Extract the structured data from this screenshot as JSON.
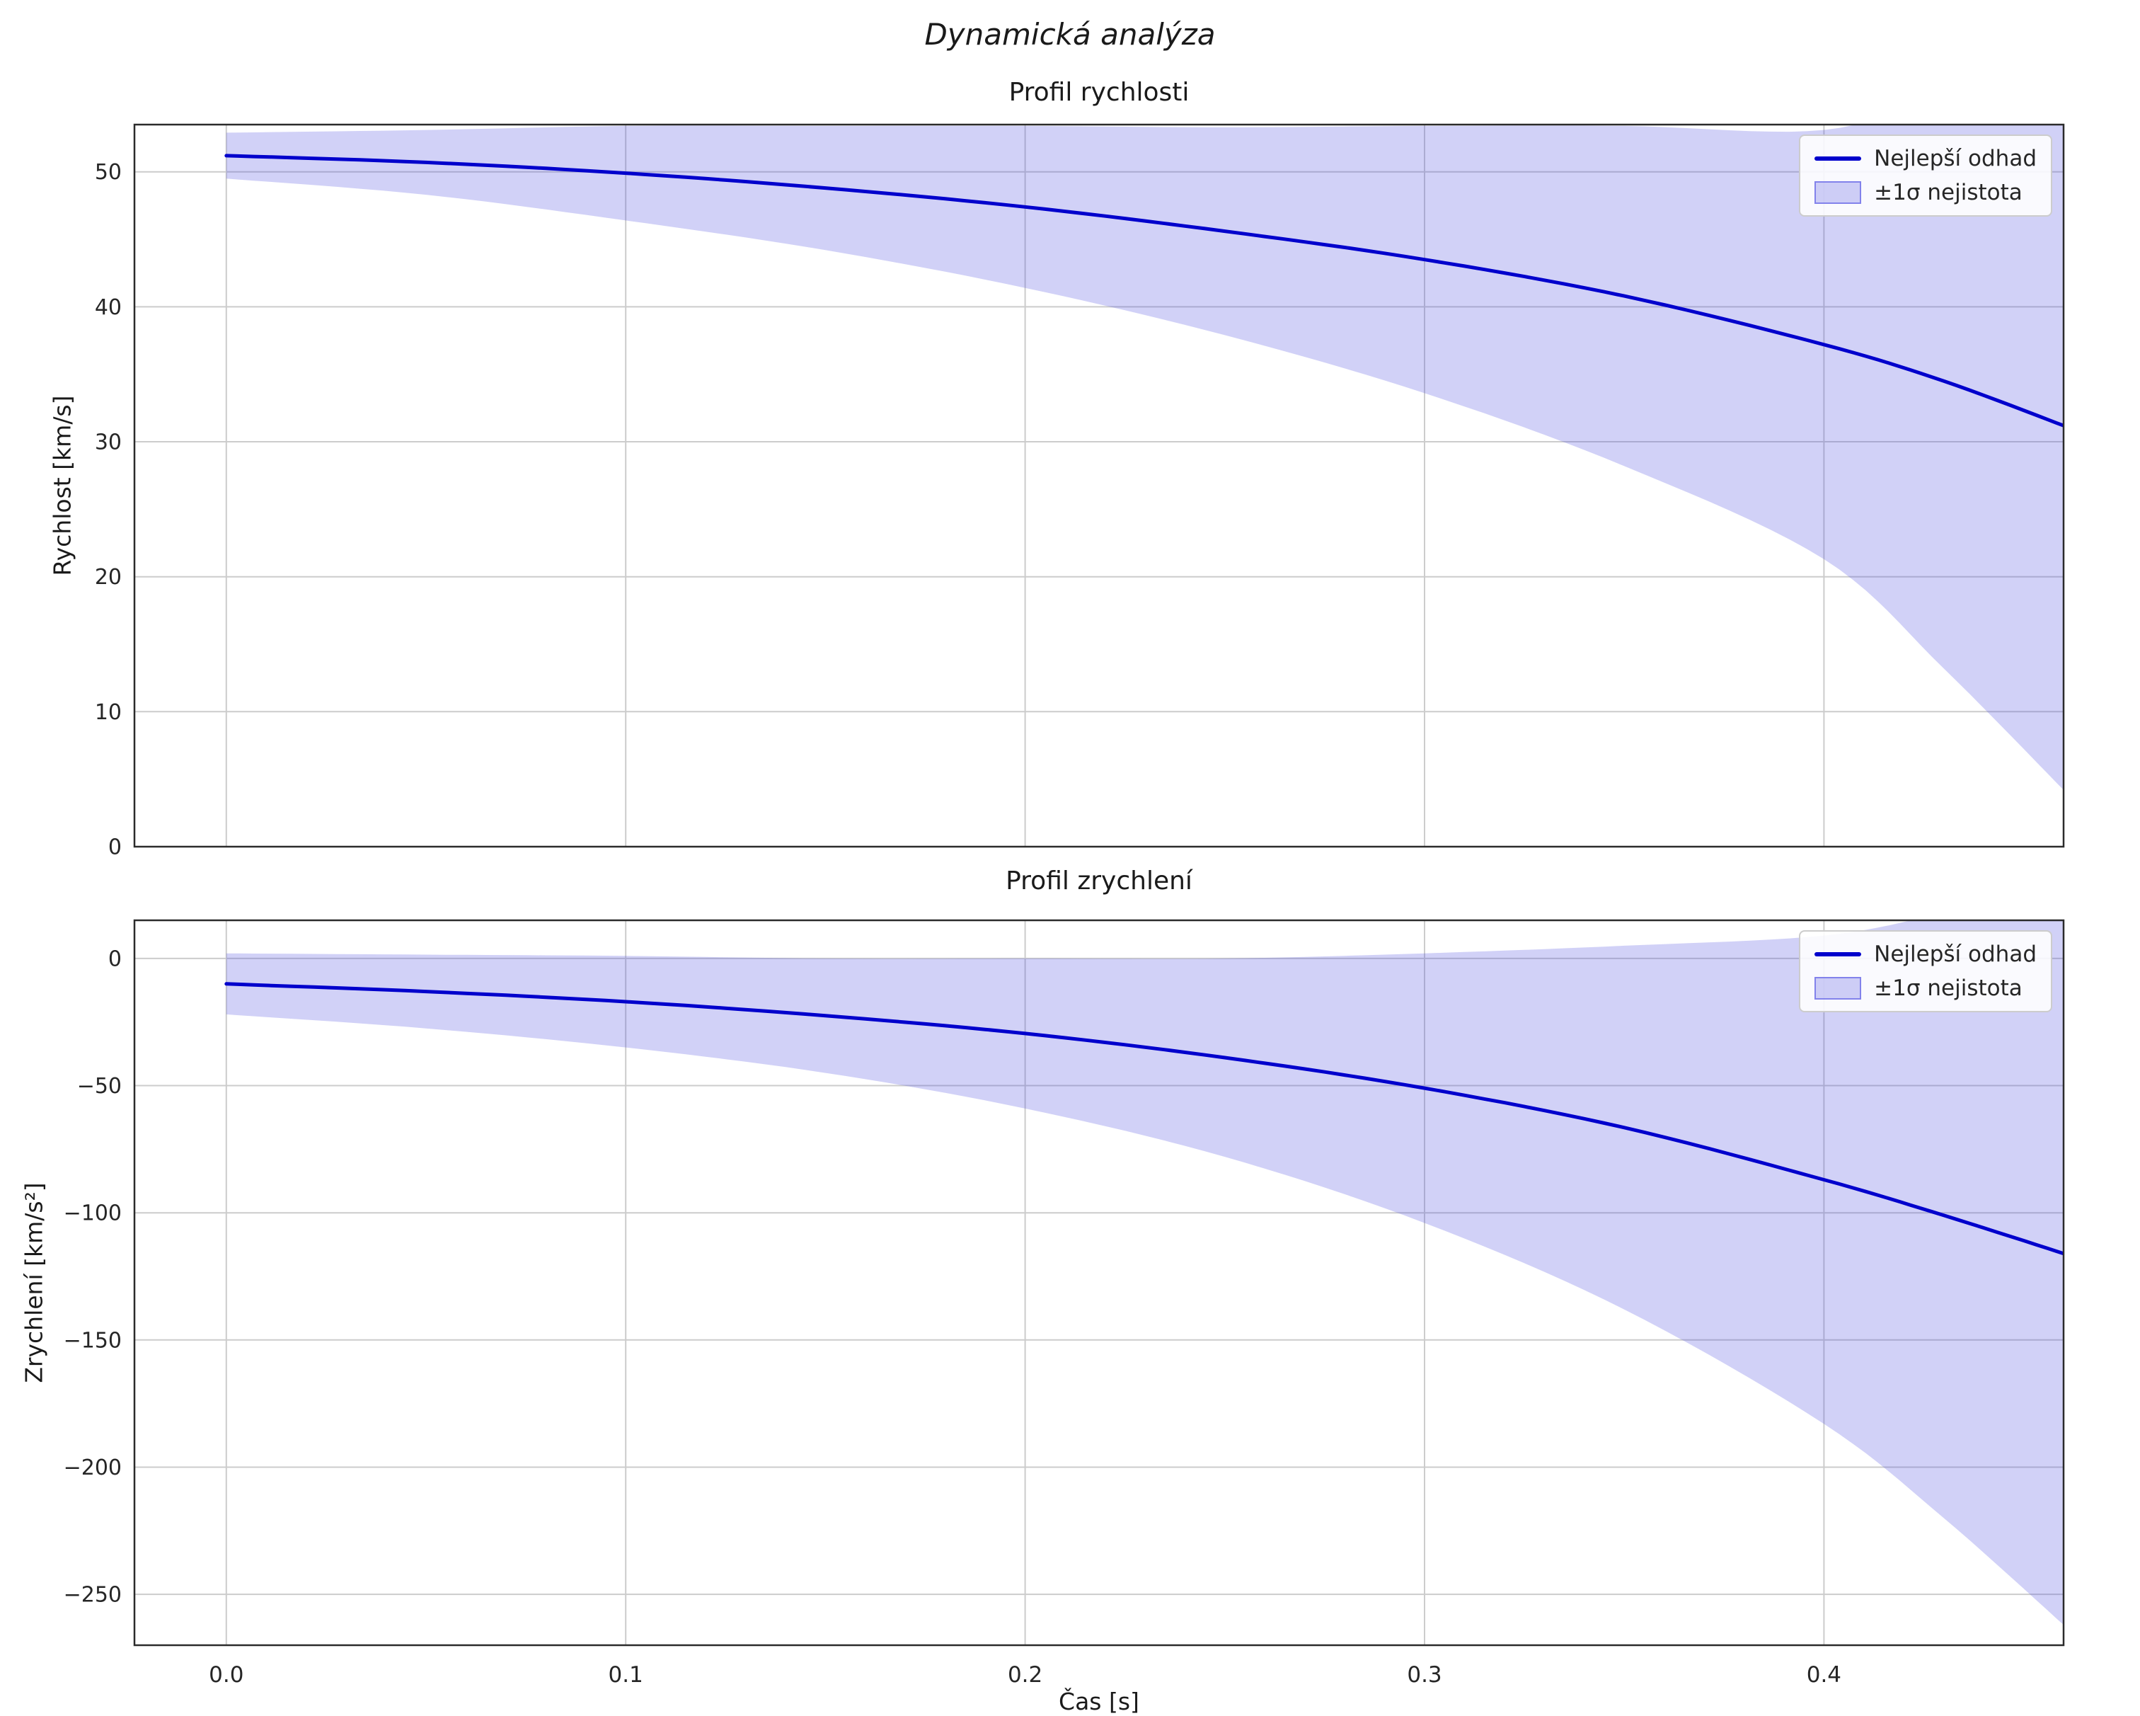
{
  "figure": {
    "title": "Dynamická analýza",
    "xlabel": "Čas [s]",
    "background": "#ffffff",
    "text_color": "#262626",
    "grid_color": "#cccccc",
    "frame_color": "#2b2b2b"
  },
  "chart_data": [
    {
      "type": "line",
      "title": "Profil rychlosti",
      "ylabel": "Rychlost [km/s]",
      "x": [
        0,
        0.05,
        0.1,
        0.15,
        0.2,
        0.25,
        0.3,
        0.35,
        0.4,
        0.43,
        0.46
      ],
      "series": [
        {
          "name": "Nejlepší odhad",
          "color": "#0000cc",
          "values": [
            51.2,
            50.7,
            49.9,
            48.8,
            47.4,
            45.6,
            43.5,
            40.8,
            37.2,
            34.5,
            31.2
          ]
        }
      ],
      "band": {
        "name": "±1σ nejistota",
        "fill": "rgba(70,70,225,0.25)",
        "edge": "rgba(70,70,225,0.55)",
        "lower": [
          49.5,
          48.3,
          46.4,
          44.2,
          41.4,
          37.9,
          33.6,
          28.2,
          21.3,
          13.2,
          4.2
        ],
        "upper": [
          52.9,
          53.1,
          53.4,
          53.4,
          53.4,
          53.3,
          53.4,
          53.4,
          53.1,
          55.8,
          58.2
        ]
      },
      "xlim": [
        -0.023,
        0.46
      ],
      "ylim": [
        0,
        53.5
      ],
      "xticks": {
        "values": [
          0,
          0.1,
          0.2,
          0.3,
          0.4
        ],
        "labels": [
          "0.0",
          "0.1",
          "0.2",
          "0.3",
          "0.4"
        ],
        "show_labels": false
      },
      "yticks": {
        "values": [
          0,
          10,
          20,
          30,
          40,
          50
        ],
        "labels": [
          "0",
          "10",
          "20",
          "30",
          "40",
          "50"
        ]
      },
      "legend": {
        "position": "upper right",
        "entries": [
          "Nejlepší odhad",
          "±1σ nejistota"
        ]
      },
      "grid": true
    },
    {
      "type": "line",
      "title": "Profil zrychlení",
      "ylabel": "Zrychlení [km/s²]",
      "x": [
        0,
        0.05,
        0.1,
        0.15,
        0.2,
        0.25,
        0.3,
        0.35,
        0.4,
        0.43,
        0.46
      ],
      "series": [
        {
          "name": "Nejlepší odhad",
          "color": "#0000cc",
          "values": [
            -10,
            -13,
            -17,
            -22.5,
            -29.5,
            -39,
            -51,
            -66.5,
            -87,
            -101,
            -116
          ]
        }
      ],
      "band": {
        "name": "±1σ nejistota",
        "fill": "rgba(70,70,225,0.25)",
        "edge": "rgba(70,70,225,0.55)",
        "lower": [
          -22,
          -27.5,
          -35,
          -45,
          -59,
          -78,
          -104,
          -138,
          -183,
          -220,
          -262
        ],
        "upper": [
          2,
          1.5,
          1,
          0,
          0,
          0,
          2,
          5,
          9,
          18,
          30
        ]
      },
      "xlim": [
        -0.023,
        0.46
      ],
      "ylim": [
        -270,
        15
      ],
      "xticks": {
        "values": [
          0,
          0.1,
          0.2,
          0.3,
          0.4
        ],
        "labels": [
          "0.0",
          "0.1",
          "0.2",
          "0.3",
          "0.4"
        ],
        "show_labels": true
      },
      "yticks": {
        "values": [
          0,
          -50,
          -100,
          -150,
          -200,
          -250
        ],
        "labels": [
          "0",
          "−50",
          "−100",
          "−150",
          "−200",
          "−250"
        ]
      },
      "legend": {
        "position": "upper right",
        "entries": [
          "Nejlepší odhad",
          "±1σ nejistota"
        ]
      },
      "grid": true
    }
  ]
}
